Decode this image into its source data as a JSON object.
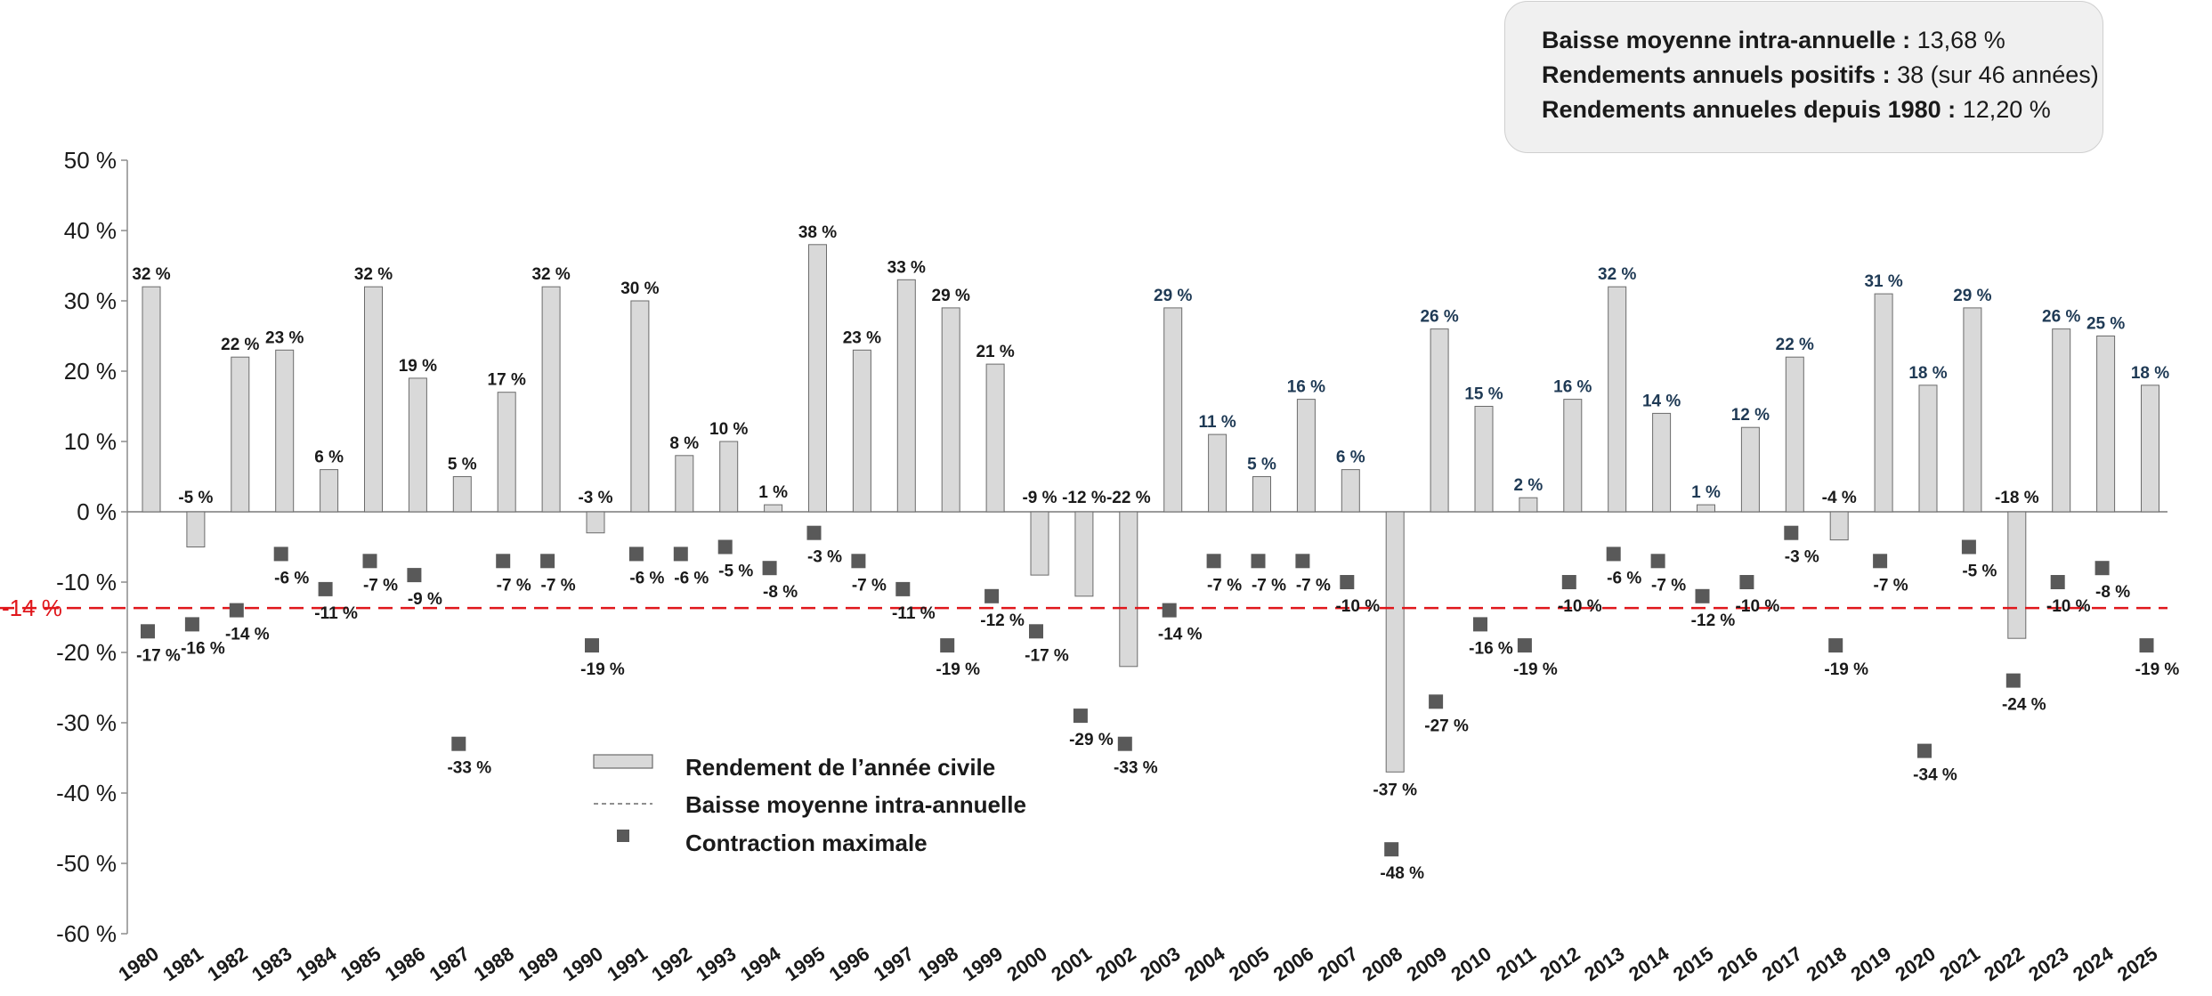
{
  "infobox": {
    "line1_key": "Baisse moyenne intra-annuelle :",
    "line1_val": "13,68 %",
    "line2_key": "Rendements annuels positifs :",
    "line2_val": "38 (sur 46 années)",
    "line3_key": "Rendements annueles depuis 1980 :",
    "line3_val": "12,20 %"
  },
  "legend": {
    "bar_label": "Rendement de l’année civile",
    "line_label": "Baisse moyenne intra-annuelle",
    "marker_label": "Contraction maximale"
  },
  "colors": {
    "bar_fill": "#d9d9d9",
    "bar_stroke": "#6b6b6b",
    "marker": "#595959",
    "avg_line": "#e0161b",
    "label_dark": "#1a1a1a",
    "label_navy": "#1f3a55"
  },
  "chart_data": {
    "type": "bar",
    "ylim": [
      -60,
      50
    ],
    "yticks": [
      50,
      40,
      30,
      20,
      10,
      0,
      -10,
      -20,
      -30,
      -40,
      -50,
      -60
    ],
    "ytick_labels": [
      "50 %",
      "40 %",
      "30 %",
      "20 %",
      "10 %",
      "0 %",
      "-10 %",
      "-20 %",
      "-30 %",
      "-40 %",
      "-50 %",
      "-60 %"
    ],
    "categories": [
      "1980",
      "1981",
      "1982",
      "1983",
      "1984",
      "1985",
      "1986",
      "1987",
      "1988",
      "1989",
      "1990",
      "1991",
      "1992",
      "1993",
      "1994",
      "1995",
      "1996",
      "1997",
      "1998",
      "1999",
      "2000",
      "2001",
      "2002",
      "2003",
      "2004",
      "2005",
      "2006",
      "2007",
      "2008",
      "2009",
      "2010",
      "2011",
      "2012",
      "2013",
      "2014",
      "2015",
      "2016",
      "2017",
      "2018",
      "2019",
      "2020",
      "2021",
      "2022",
      "2023",
      "2024",
      "2025"
    ],
    "series": [
      {
        "name": "Rendement de l’année civile",
        "type": "bar",
        "values": [
          32,
          -5,
          22,
          23,
          6,
          32,
          19,
          5,
          17,
          32,
          -3,
          30,
          8,
          10,
          1,
          38,
          23,
          33,
          29,
          21,
          -9,
          -12,
          -22,
          29,
          11,
          5,
          16,
          6,
          -37,
          26,
          15,
          2,
          16,
          32,
          14,
          1,
          12,
          22,
          -4,
          31,
          18,
          29,
          -18,
          26,
          25,
          18
        ],
        "labels": [
          "32 %",
          "-5 %",
          "22 %",
          "23 %",
          "6 %",
          "32 %",
          "19 %",
          "5 %",
          "17 %",
          "32 %",
          "-3 %",
          "30 %",
          "8 %",
          "10 %",
          "1 %",
          "38 %",
          "23 %",
          "33 %",
          "29 %",
          "21 %",
          "-9 %",
          "-12 %",
          "-22 %",
          "29 %",
          "11 %",
          "5 %",
          "16 %",
          "6 %",
          "-37 %",
          "26 %",
          "15 %",
          "2 %",
          "16 %",
          "32 %",
          "14 %",
          "1 %",
          "12 %",
          "22 %",
          "-4 %",
          "31 %",
          "18 %",
          "29 %",
          "-18 %",
          "26 %",
          "25 %",
          "18 %"
        ]
      },
      {
        "name": "Contraction maximale",
        "type": "scatter",
        "values": [
          -17,
          -16,
          -14,
          -6,
          -11,
          -7,
          -9,
          -33,
          -7,
          -7,
          -19,
          -6,
          -6,
          -5,
          -8,
          -3,
          -7,
          -11,
          -19,
          -12,
          -17,
          -29,
          -33,
          -14,
          -7,
          -7,
          -7,
          -10,
          -48,
          -27,
          -16,
          -19,
          -10,
          -6,
          -7,
          -12,
          -10,
          -3,
          -19,
          -7,
          -34,
          -5,
          -24,
          -10,
          -8,
          -19
        ],
        "labels": [
          "-17 %",
          "-16 %",
          "-14 %",
          "-6 %",
          "-11 %",
          "-7 %",
          "-9 %",
          "-33 %",
          "-7 %",
          "-7 %",
          "-19 %",
          "-6 %",
          "-6 %",
          "-5 %",
          "-8 %",
          "-3 %",
          "-7 %",
          "-11 %",
          "-19 %",
          "-12 %",
          "-17 %",
          "-29 %",
          "-33 %",
          "-14 %",
          "-7 %",
          "-7 %",
          "-7 %",
          "-10 %",
          "-48 %",
          "-27 %",
          "-16 %",
          "-19 %",
          "-10 %",
          "-6 %",
          "-7 %",
          "-12 %",
          "-10 %",
          "-3 %",
          "-19 %",
          "-7 %",
          "-34 %",
          "-5 %",
          "-24 %",
          "-10 %",
          "-8 %",
          "-19 %"
        ]
      },
      {
        "name": "Baisse moyenne intra-annuelle",
        "type": "hline",
        "value": -13.68,
        "label": "-14 %"
      }
    ],
    "navy_label_from": "2003",
    "legend_position": "lower-left"
  }
}
